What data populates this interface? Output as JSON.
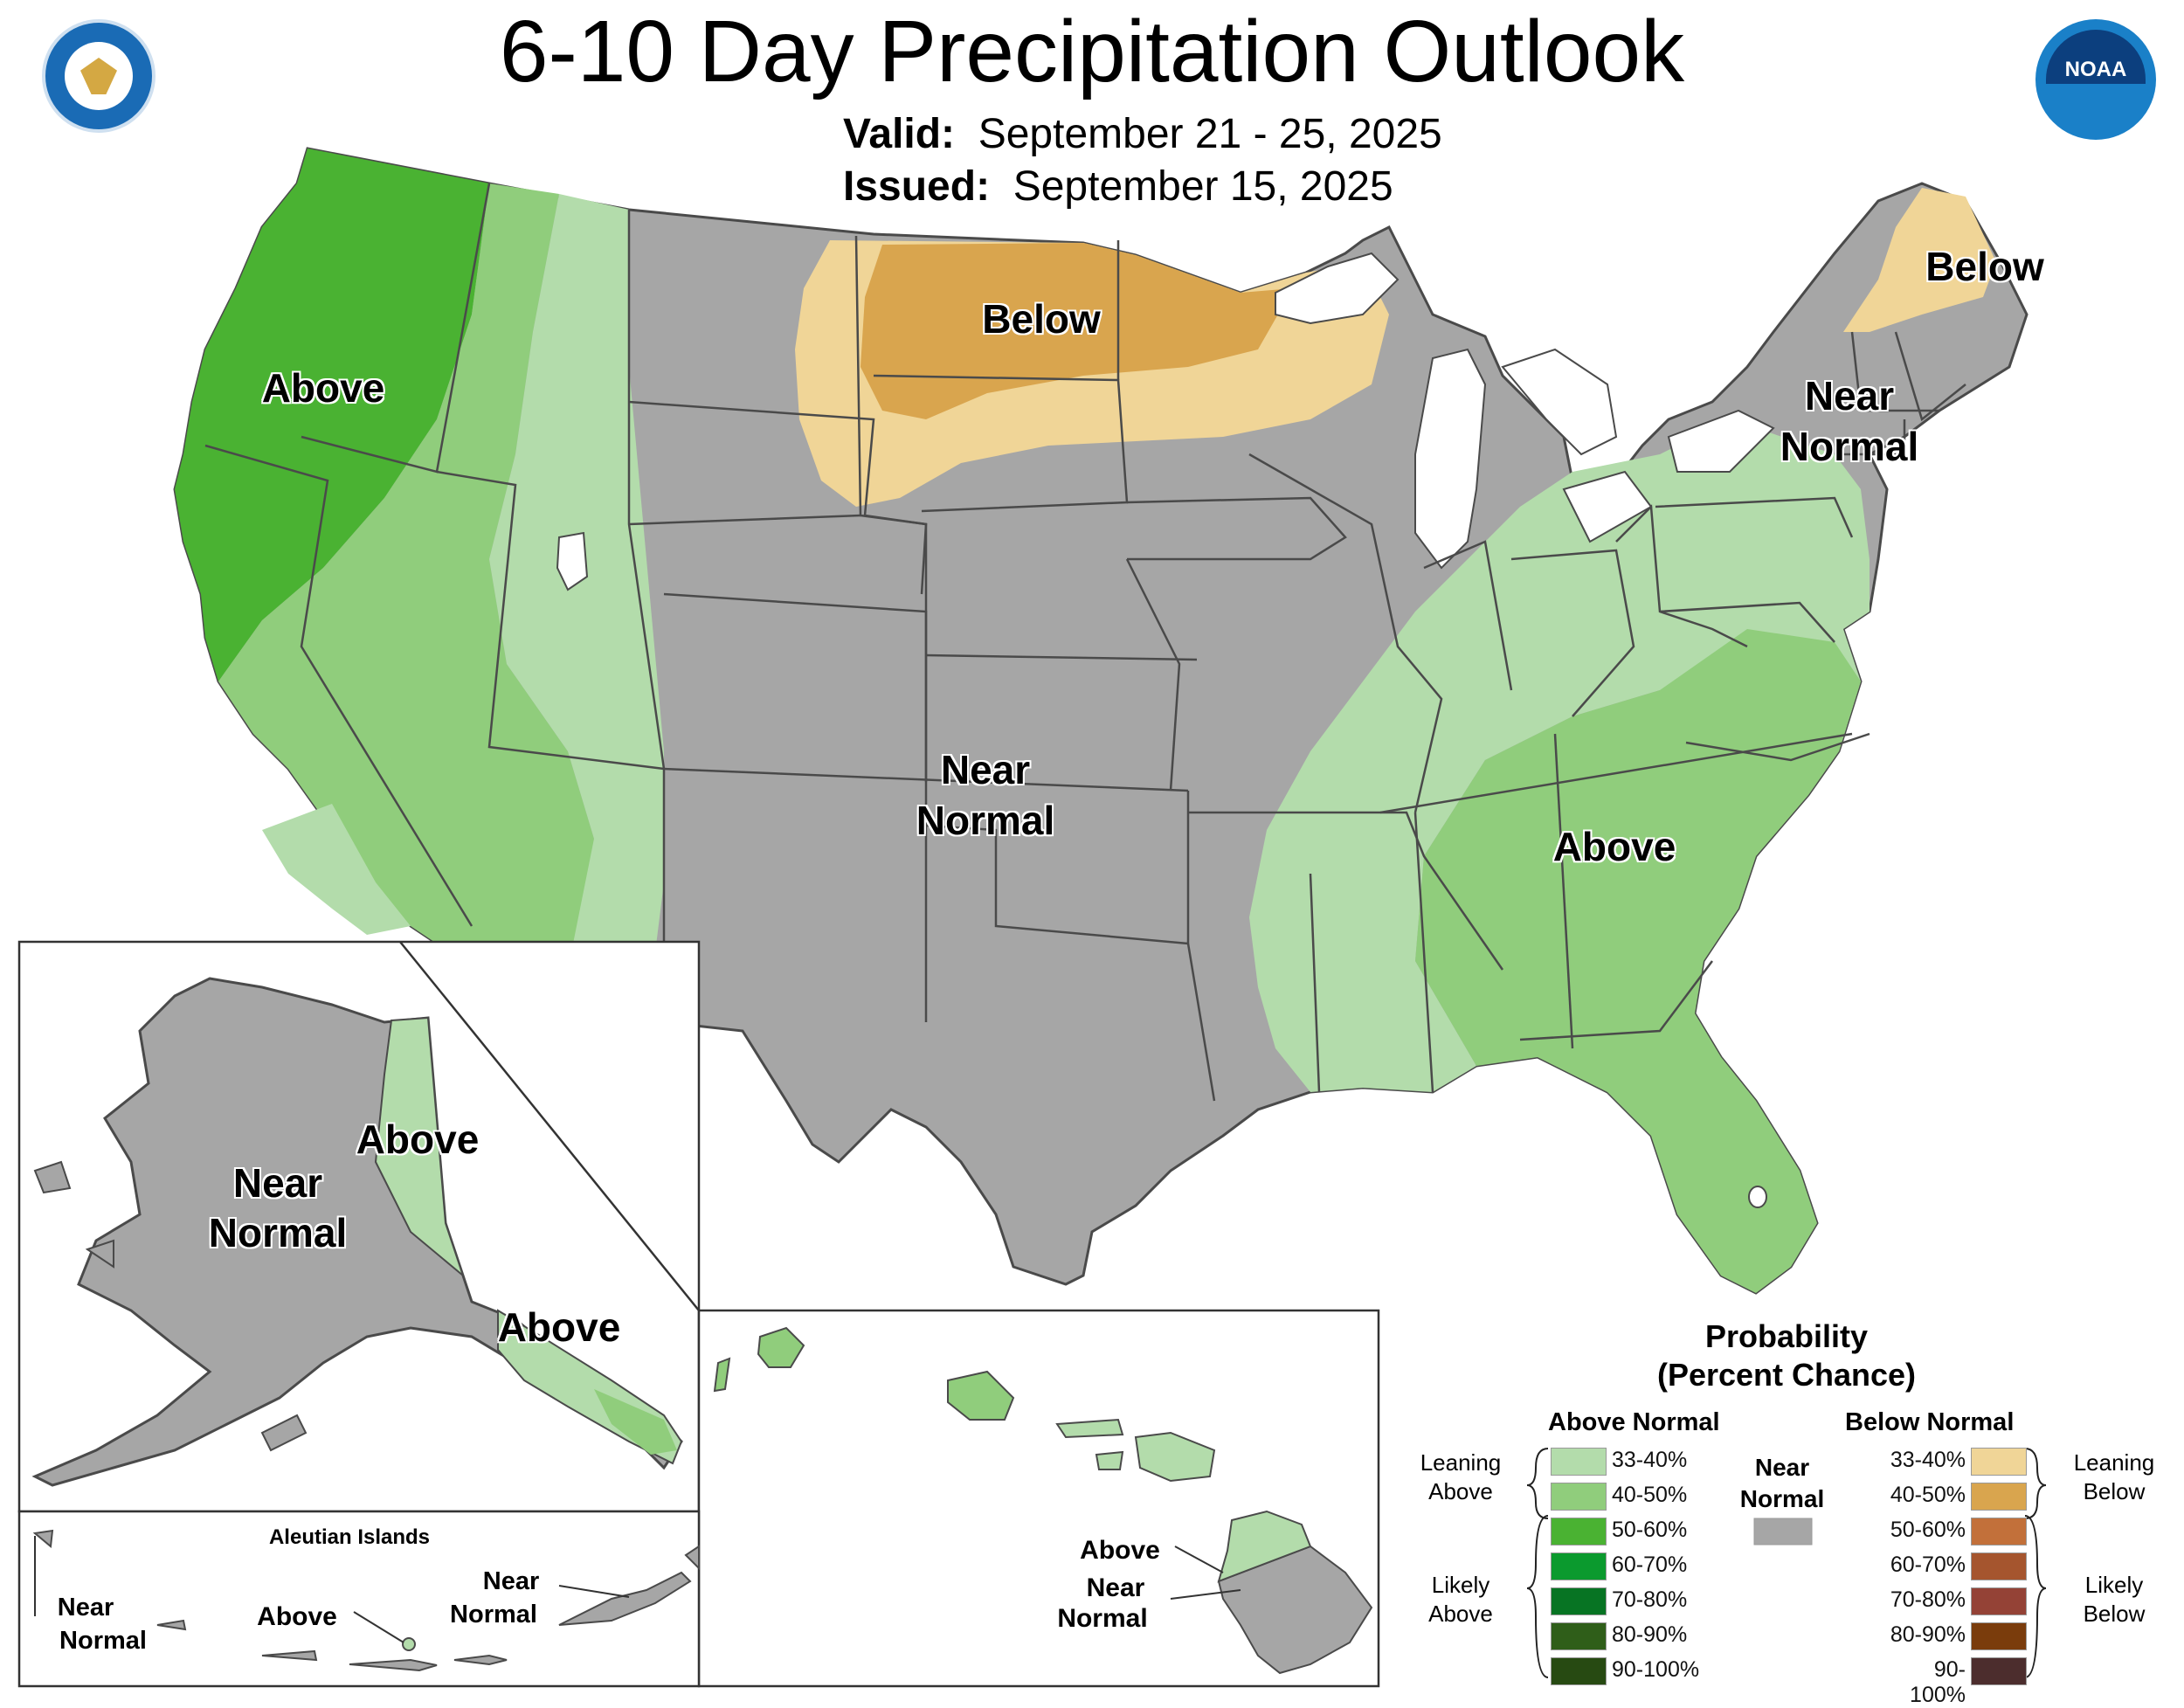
{
  "title": "6-10 Day Precipitation Outlook",
  "valid_label": "Valid:",
  "valid_value": "September 21 - 25, 2025",
  "issued_label": "Issued:",
  "issued_value": "September 15, 2025",
  "map_labels": {
    "west_above": "Above",
    "north_below": "Below",
    "maine_below": "Below",
    "ne_near": "Near",
    "ne_normal": "Normal",
    "central_near": "Near",
    "central_normal": "Normal",
    "se_above": "Above",
    "ak_above": "Above",
    "ak_near": "Near",
    "ak_normal": "Normal",
    "ak_se_above": "Above",
    "aleutian_title": "Aleutian Islands",
    "al_near1": "Near",
    "al_normal1": "Normal",
    "al_above": "Above",
    "al_near2": "Near",
    "al_normal2": "Normal",
    "hi_above": "Above",
    "hi_near": "Near",
    "hi_normal": "Normal"
  },
  "legend": {
    "title_line1": "Probability",
    "title_line2": "(Percent Chance)",
    "above_header": "Above Normal",
    "below_header": "Below Normal",
    "near_line1": "Near",
    "near_line2": "Normal",
    "near_color": "#a6a6a6",
    "leaning_above_1": "Leaning",
    "leaning_above_2": "Above",
    "likely_above_1": "Likely",
    "likely_above_2": "Above",
    "leaning_below_1": "Leaning",
    "leaning_below_2": "Below",
    "likely_below_1": "Likely",
    "likely_below_2": "Below",
    "above_items": [
      {
        "label": "33-40%",
        "color": "#b3dcab"
      },
      {
        "label": "40-50%",
        "color": "#90cd7c"
      },
      {
        "label": "50-60%",
        "color": "#4ab232"
      },
      {
        "label": "60-70%",
        "color": "#0b9a2e"
      },
      {
        "label": "70-80%",
        "color": "#077423"
      },
      {
        "label": "80-90%",
        "color": "#2f5e19"
      },
      {
        "label": "90-100%",
        "color": "#274a12"
      }
    ],
    "below_items": [
      {
        "label": "33-40%",
        "color": "#f0d597"
      },
      {
        "label": "40-50%",
        "color": "#d9a54e"
      },
      {
        "label": "50-60%",
        "color": "#c2703a"
      },
      {
        "label": "60-70%",
        "color": "#a5552e"
      },
      {
        "label": "70-80%",
        "color": "#944236"
      },
      {
        "label": "80-90%",
        "color": "#7a3c0c"
      },
      {
        "label": "90-100%",
        "color": "#4c2d2d"
      }
    ]
  },
  "colors": {
    "near_normal": "#a6a6a6",
    "above_33": "#b3dcab",
    "above_40": "#90cd7c",
    "above_50": "#4ab232",
    "below_33": "#f0d597",
    "below_40": "#d9a54e",
    "border": "#4a4a4a"
  }
}
